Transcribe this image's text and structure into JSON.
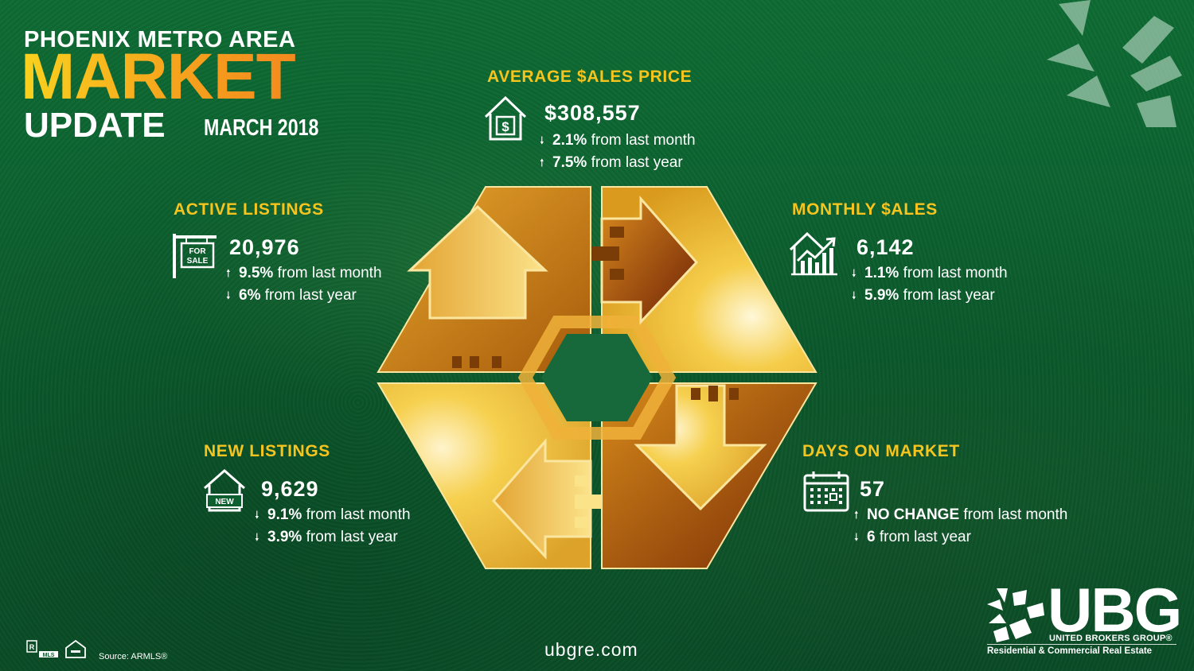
{
  "header": {
    "line1": "PHOENIX METRO AREA",
    "line2": "MARKET",
    "line3": "UPDATE",
    "date": "MARCH 2018"
  },
  "colors": {
    "accent_yellow": "#f6c41e",
    "background_green": "#0c6330",
    "gold_light": "#f7d34a",
    "gold_dark": "#b5650a"
  },
  "stats": {
    "average_price": {
      "heading": "AVERAGE $ALES PRICE",
      "icon": "house-dollar-icon",
      "value": "$308,557",
      "lines": [
        {
          "direction": "down",
          "amount": "2.1%",
          "text": " from last month"
        },
        {
          "direction": "up",
          "amount": "7.5%",
          "text": " from last year"
        }
      ]
    },
    "active_listings": {
      "heading": "ACTIVE LISTINGS",
      "icon": "for-sale-sign-icon",
      "sign_text": "FOR SALE",
      "value": "20,976",
      "lines": [
        {
          "direction": "up",
          "amount": "9.5%",
          "text": " from last month"
        },
        {
          "direction": "down",
          "amount": "6%",
          "text": " from last year"
        }
      ]
    },
    "monthly_sales": {
      "heading": "MONTHLY $ALES",
      "icon": "house-chart-icon",
      "value": "6,142",
      "lines": [
        {
          "direction": "down",
          "amount": "1.1%",
          "text": " from last month"
        },
        {
          "direction": "down",
          "amount": "5.9%",
          "text": " from last year"
        }
      ]
    },
    "new_listings": {
      "heading": "NEW LISTINGS",
      "icon": "house-new-icon",
      "badge_text": "NEW",
      "value": "9,629",
      "lines": [
        {
          "direction": "down",
          "amount": "9.1%",
          "text": " from last month"
        },
        {
          "direction": "down",
          "amount": "3.9%",
          "text": " from last year"
        }
      ]
    },
    "days_on_market": {
      "heading": "DAYS ON MARKET",
      "icon": "calendar-icon",
      "value": "57",
      "lines": [
        {
          "direction": "up",
          "amount": "NO CHANGE",
          "text": " from last month"
        },
        {
          "direction": "down",
          "amount": "6",
          "text": " from last year"
        }
      ]
    }
  },
  "footer": {
    "website": "ubgre.com",
    "source": "Source:  ARMLS®",
    "logo_name": "UBG",
    "logo_subtitle": "UNITED BROKERS GROUP®",
    "logo_tagline": "Residential & Commercial Real Estate"
  }
}
